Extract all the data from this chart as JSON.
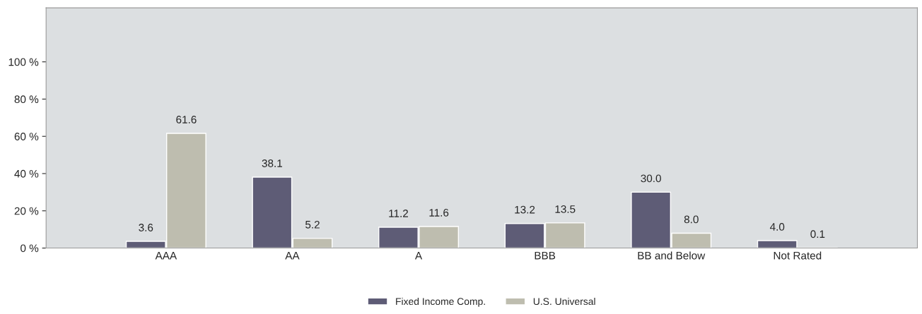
{
  "chart_data": {
    "type": "bar",
    "categories": [
      "AAA",
      "AA",
      "A",
      "BBB",
      "BB and Below",
      "Not Rated"
    ],
    "series": [
      {
        "name": "Fixed Income Comp.",
        "color": "#5e5c76",
        "values": [
          3.6,
          38.1,
          11.2,
          13.2,
          30.0,
          4.0
        ],
        "value_labels": [
          "3.6",
          "38.1",
          "11.2",
          "13.2",
          "30.0",
          "4.0"
        ]
      },
      {
        "name": "U.S. Universal",
        "color": "#bebdaf",
        "values": [
          61.6,
          5.2,
          11.6,
          13.5,
          8.0,
          0.1
        ],
        "value_labels": [
          "61.6",
          "5.2",
          "11.6",
          "13.5",
          "8.0",
          "0.1"
        ]
      }
    ],
    "ylim": [
      0,
      129
    ],
    "yticks": [
      {
        "value": 0,
        "label": "0 %"
      },
      {
        "value": 20,
        "label": "20 %"
      },
      {
        "value": 40,
        "label": "40 %"
      },
      {
        "value": 60,
        "label": "60 %"
      },
      {
        "value": 80,
        "label": "80 %"
      },
      {
        "value": 100,
        "label": "100 %"
      }
    ],
    "grid": false,
    "legend": "bottom"
  }
}
